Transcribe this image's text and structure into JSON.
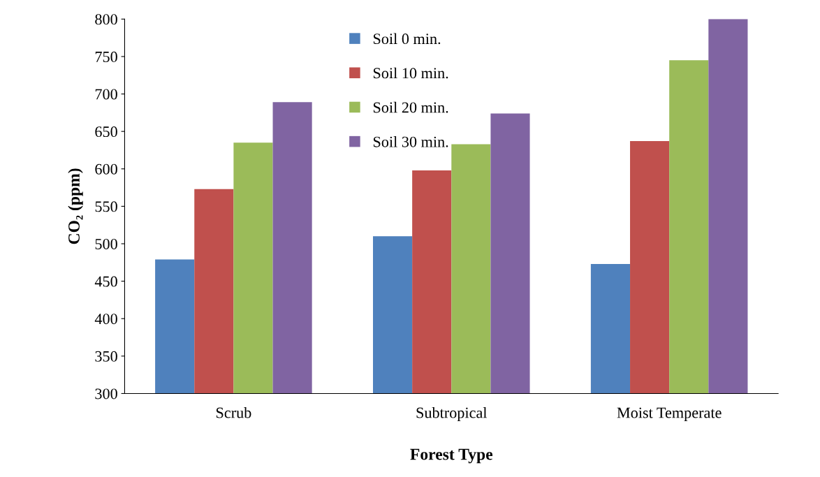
{
  "chart_data": {
    "type": "bar",
    "xlabel": "Forest Type",
    "ylabel": "CO₂ (ppm)",
    "categories": [
      "Scrub",
      "Subtropical",
      "Moist Temperate"
    ],
    "series": [
      {
        "name": "Soil 0 min.",
        "color": "#4f81bd",
        "values": [
          479,
          510,
          473
        ]
      },
      {
        "name": "Soil 10 min.",
        "color": "#c0504d",
        "values": [
          573,
          598,
          637
        ]
      },
      {
        "name": "Soil 20 min.",
        "color": "#9bbb59",
        "values": [
          635,
          633,
          745
        ]
      },
      {
        "name": "Soil 30 min.",
        "color": "#8064a2",
        "values": [
          689,
          674,
          800
        ]
      }
    ],
    "ylim": [
      300,
      800
    ],
    "yticks": [
      300,
      350,
      400,
      450,
      500,
      550,
      600,
      650,
      700,
      750,
      800
    ],
    "grid": false,
    "legend": "top"
  }
}
